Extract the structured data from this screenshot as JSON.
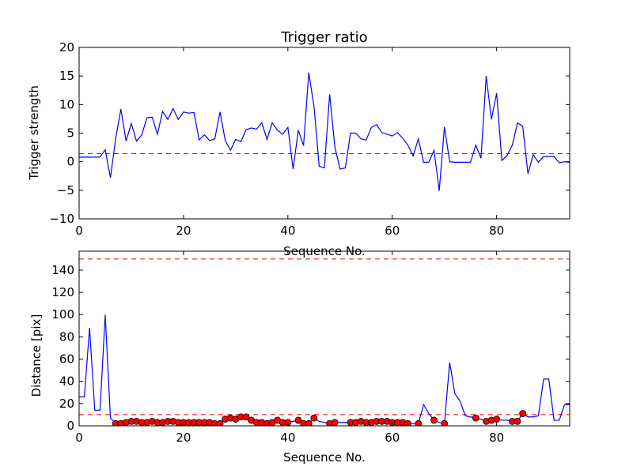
{
  "chart_data": [
    {
      "type": "line",
      "title": "Trigger ratio",
      "xlabel": "Sequence No.",
      "ylabel": "Trigger strength",
      "xlim": [
        0,
        94
      ],
      "ylim": [
        -10,
        20
      ],
      "xticks": [
        0,
        20,
        40,
        60,
        80
      ],
      "yticks": [
        -10,
        -5,
        0,
        5,
        10,
        15,
        20
      ],
      "xtick_labels": [
        "0",
        "20",
        "40",
        "60",
        "80"
      ],
      "ytick_labels": [
        "−10",
        "−5",
        "0",
        "5",
        "10",
        "15",
        "20"
      ],
      "grid": false,
      "threshold": {
        "y": 1.4,
        "color": "#ff0000",
        "style": "dashed"
      },
      "series": [
        {
          "color": "#0000ff",
          "x": [
            0,
            1,
            2,
            3,
            4,
            5,
            6,
            7,
            8,
            9,
            10,
            11,
            12,
            13,
            14,
            15,
            16,
            17,
            18,
            19,
            20,
            21,
            22,
            23,
            24,
            25,
            26,
            27,
            28,
            29,
            30,
            31,
            32,
            33,
            34,
            35,
            36,
            37,
            38,
            39,
            40,
            41,
            42,
            43,
            44,
            45,
            46,
            47,
            48,
            49,
            50,
            51,
            52,
            53,
            54,
            55,
            56,
            57,
            58,
            59,
            60,
            61,
            62,
            63,
            64,
            65,
            66,
            67,
            68,
            69,
            70,
            71,
            72,
            73,
            74,
            75,
            76,
            77,
            78,
            79,
            80,
            81,
            82,
            83,
            84,
            85,
            86,
            87,
            88,
            89,
            90,
            91,
            92,
            93,
            94
          ],
          "y": [
            0.8,
            0.8,
            0.8,
            0.8,
            0.8,
            2.1,
            -2.8,
            4.0,
            9.2,
            3.6,
            6.7,
            3.6,
            4.7,
            7.7,
            7.8,
            4.8,
            8.8,
            7.4,
            9.3,
            7.4,
            8.7,
            8.5,
            8.6,
            3.8,
            4.7,
            3.7,
            4.0,
            8.7,
            3.7,
            2.0,
            3.9,
            3.5,
            5.6,
            5.9,
            5.7,
            6.8,
            3.9,
            6.8,
            5.5,
            4.8,
            6.0,
            -1.3,
            5.5,
            2.8,
            15.6,
            9.7,
            -0.8,
            -1.1,
            11.8,
            2.6,
            -1.3,
            -1.1,
            5.0,
            5.0,
            4.0,
            3.8,
            6.0,
            6.5,
            5.1,
            4.8,
            4.5,
            5.1,
            4.1,
            2.9,
            1.0,
            4.0,
            -0.1,
            -0.1,
            2.0,
            -5.1,
            6.1,
            0.0,
            -0.1,
            -0.1,
            -0.1,
            -0.1,
            2.9,
            0.6,
            15.0,
            7.4,
            12.0,
            0.2,
            1.1,
            2.9,
            6.8,
            6.2,
            -2.1,
            1.2,
            -0.1,
            0.9,
            0.9,
            0.9,
            -0.2,
            0.0,
            -0.1
          ]
        }
      ]
    },
    {
      "type": "line",
      "title": "",
      "xlabel": "Sequence No.",
      "ylabel": "Distance [pix]",
      "xlim": [
        0,
        94
      ],
      "ylim": [
        0,
        157
      ],
      "xticks": [
        0,
        20,
        40,
        60,
        80
      ],
      "yticks": [
        0,
        20,
        40,
        60,
        80,
        100,
        120,
        140
      ],
      "xtick_labels": [
        "0",
        "20",
        "40",
        "60",
        "80"
      ],
      "ytick_labels": [
        "0",
        "20",
        "40",
        "60",
        "80",
        "100",
        "120",
        "140"
      ],
      "grid": false,
      "thresholds": [
        {
          "y": 150,
          "color": "#ff0000",
          "style": "dashed"
        },
        {
          "y": 10,
          "color": "#ff0000",
          "style": "dashed"
        }
      ],
      "series": [
        {
          "color": "#0000ff",
          "x": [
            0,
            1,
            2,
            3,
            4,
            5,
            6,
            7,
            8,
            9,
            10,
            11,
            12,
            13,
            14,
            15,
            16,
            17,
            18,
            19,
            20,
            21,
            22,
            23,
            24,
            25,
            26,
            27,
            28,
            29,
            30,
            31,
            32,
            33,
            34,
            35,
            36,
            37,
            38,
            39,
            40,
            41,
            42,
            43,
            44,
            45,
            46,
            47,
            48,
            49,
            50,
            51,
            52,
            53,
            54,
            55,
            56,
            57,
            58,
            59,
            60,
            61,
            62,
            63,
            64,
            65,
            66,
            67,
            68,
            69,
            70,
            71,
            72,
            73,
            74,
            75,
            76,
            77,
            78,
            79,
            80,
            81,
            82,
            83,
            84,
            85,
            86,
            87,
            88,
            89,
            90,
            91,
            92,
            93,
            94
          ],
          "y": [
            26,
            26,
            88,
            14,
            14,
            100,
            7,
            2,
            2,
            3,
            4,
            4,
            3,
            3,
            4,
            3,
            3,
            4,
            4,
            3,
            3,
            3,
            3,
            3,
            3,
            3,
            2,
            2,
            6,
            7,
            6,
            8,
            8,
            5,
            3,
            3,
            2,
            3,
            5,
            3,
            3,
            4,
            5,
            2,
            2,
            7,
            4,
            3,
            2,
            3,
            3,
            3,
            3,
            3,
            4,
            3,
            3,
            4,
            4,
            4,
            3,
            3,
            3,
            2,
            2,
            2,
            19,
            11,
            5,
            3,
            2,
            57,
            29,
            22,
            9,
            8,
            7,
            6,
            4,
            5,
            6,
            5,
            5,
            4,
            4,
            11,
            8,
            8,
            9,
            42,
            42,
            5,
            5,
            19,
            19
          ]
        },
        {
          "color": "#ff0000",
          "markers": "circle",
          "x": [
            7,
            8,
            9,
            10,
            11,
            12,
            13,
            14,
            15,
            16,
            17,
            18,
            19,
            20,
            21,
            22,
            23,
            24,
            25,
            26,
            27,
            28,
            29,
            30,
            31,
            32,
            33,
            34,
            35,
            36,
            37,
            38,
            39,
            40,
            42,
            43,
            44,
            45,
            48,
            49,
            52,
            53,
            54,
            55,
            56,
            57,
            58,
            59,
            60,
            61,
            62,
            63,
            65,
            68,
            70,
            76,
            78,
            79,
            80,
            83,
            84,
            85
          ],
          "y": [
            2,
            2,
            3,
            4,
            4,
            3,
            3,
            4,
            3,
            3,
            4,
            4,
            3,
            3,
            3,
            3,
            3,
            3,
            3,
            2,
            2,
            6,
            7,
            6,
            8,
            8,
            5,
            3,
            3,
            2,
            3,
            5,
            3,
            3,
            5,
            2,
            2,
            7,
            2,
            3,
            3,
            3,
            4,
            3,
            3,
            4,
            4,
            4,
            3,
            3,
            3,
            2,
            2,
            5,
            2,
            7,
            4,
            5,
            6,
            4,
            4,
            11
          ]
        }
      ]
    }
  ]
}
